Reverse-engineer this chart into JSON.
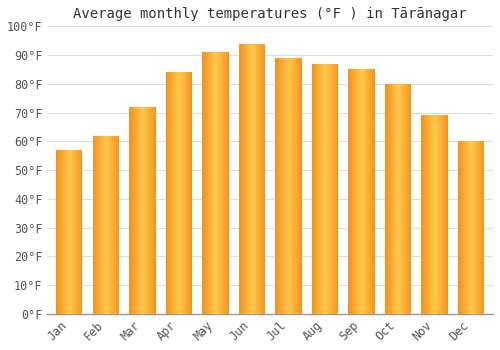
{
  "title": "Average monthly temperatures (°F ) in Tārānagar",
  "months": [
    "Jan",
    "Feb",
    "Mar",
    "Apr",
    "May",
    "Jun",
    "Jul",
    "Aug",
    "Sep",
    "Oct",
    "Nov",
    "Dec"
  ],
  "values": [
    57,
    62,
    72,
    84,
    91,
    94,
    89,
    87,
    85,
    80,
    69,
    60
  ],
  "bar_color_center": "#FFC84A",
  "bar_color_edge": "#F5921E",
  "background_color": "#ffffff",
  "grid_color": "#dddddd",
  "ylim": [
    0,
    100
  ],
  "ytick_step": 10,
  "title_fontsize": 10,
  "tick_fontsize": 8.5,
  "bar_width": 0.72
}
